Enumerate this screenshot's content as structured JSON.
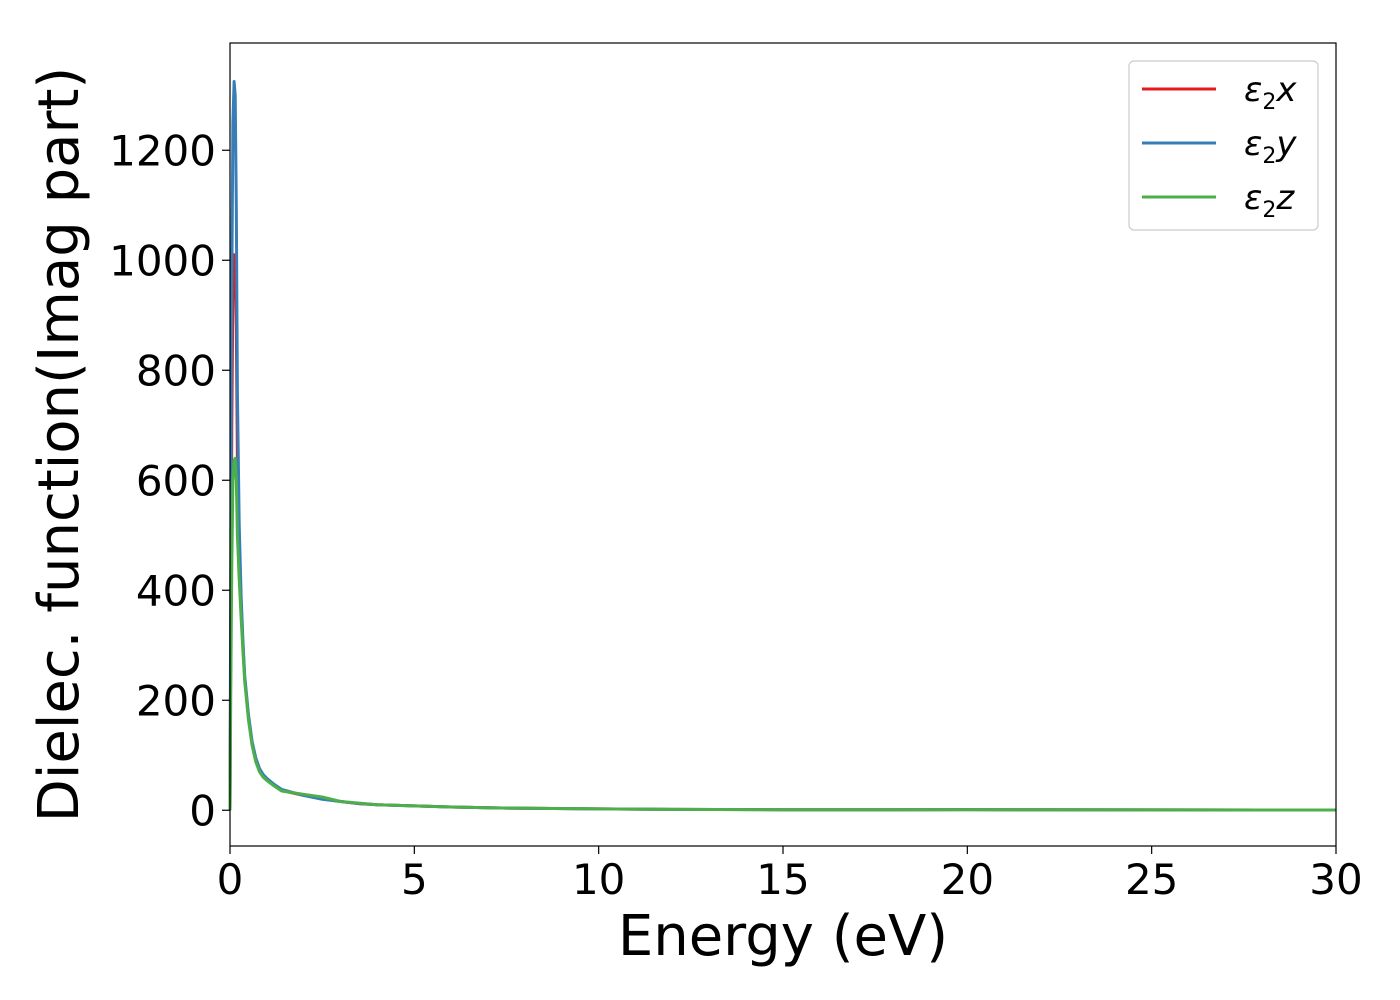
{
  "chart_data": {
    "type": "line",
    "title": "",
    "xlabel": "Energy (eV)",
    "ylabel": "Dielec. function(Imag part)",
    "xlim": [
      0,
      30
    ],
    "ylim": [
      -65,
      1395
    ],
    "xticks": [
      0,
      5,
      10,
      15,
      20,
      25,
      30
    ],
    "yticks": [
      0,
      200,
      400,
      600,
      800,
      1000,
      1200
    ],
    "grid": false,
    "legend_position": "top-right",
    "series": [
      {
        "name": "x",
        "legend_base": "ε",
        "legend_sub": "2",
        "color": "#e41a1c",
        "x": [
          0,
          0.02,
          0.05,
          0.08,
          0.11,
          0.14,
          0.17,
          0.2,
          0.25,
          0.3,
          0.35,
          0.4,
          0.5,
          0.6,
          0.7,
          0.8,
          0.9,
          1.0,
          1.2,
          1.4,
          1.6,
          2.0,
          2.5,
          3.0,
          3.5,
          4.0,
          5.0,
          6.0,
          7.0,
          8.0,
          10.0,
          12.0,
          15.0,
          18.0,
          20.0,
          22.0,
          25.0,
          28.0,
          30.0
        ],
        "y": [
          0,
          300,
          700,
          950,
          1010,
          1000,
          880,
          640,
          470,
          370,
          300,
          240,
          170,
          120,
          90,
          72,
          62,
          56,
          45,
          36,
          33,
          27,
          21,
          16,
          12,
          10,
          8,
          6,
          4.5,
          3.5,
          2.5,
          1.5,
          1,
          0.8,
          1.2,
          0.9,
          0.7,
          0.5,
          0.4
        ]
      },
      {
        "name": "y",
        "legend_base": "ε",
        "legend_sub": "2",
        "color": "#377eb8",
        "x": [
          0,
          0.02,
          0.05,
          0.08,
          0.11,
          0.14,
          0.17,
          0.2,
          0.25,
          0.3,
          0.35,
          0.4,
          0.5,
          0.6,
          0.7,
          0.8,
          0.9,
          1.0,
          1.2,
          1.4,
          1.6,
          2.0,
          2.5,
          3.0,
          3.5,
          4.0,
          5.0,
          6.0,
          7.0,
          8.0,
          10.0,
          12.0,
          15.0,
          18.0,
          20.0,
          22.0,
          25.0,
          28.0,
          30.0
        ],
        "y": [
          0,
          400,
          950,
          1250,
          1325,
          1300,
          1100,
          760,
          520,
          390,
          310,
          245,
          175,
          125,
          95,
          76,
          65,
          58,
          47,
          38,
          34,
          27,
          20,
          16,
          12,
          10,
          8,
          6,
          4.5,
          3.5,
          2.5,
          1.5,
          1,
          0.8,
          1.2,
          0.9,
          0.7,
          0.5,
          0.4
        ]
      },
      {
        "name": "z",
        "legend_base": "ε",
        "legend_sub": "2",
        "color": "#4daf4a",
        "x": [
          0,
          0.02,
          0.05,
          0.08,
          0.11,
          0.14,
          0.17,
          0.2,
          0.25,
          0.3,
          0.35,
          0.4,
          0.5,
          0.6,
          0.7,
          0.8,
          0.9,
          1.0,
          1.2,
          1.4,
          1.6,
          2.0,
          2.5,
          3.0,
          3.5,
          4.0,
          5.0,
          6.0,
          7.0,
          8.0,
          10.0,
          12.0,
          15.0,
          18.0,
          20.0,
          22.0,
          25.0,
          28.0,
          30.0
        ],
        "y": [
          0,
          200,
          450,
          600,
          635,
          640,
          600,
          500,
          420,
          350,
          290,
          235,
          165,
          118,
          88,
          70,
          60,
          54,
          44,
          35,
          33,
          29,
          24,
          16,
          13,
          10,
          8,
          6,
          4.5,
          3.5,
          2.5,
          1.5,
          1,
          0.8,
          1.2,
          0.9,
          0.7,
          0.5,
          0.4
        ]
      }
    ]
  }
}
